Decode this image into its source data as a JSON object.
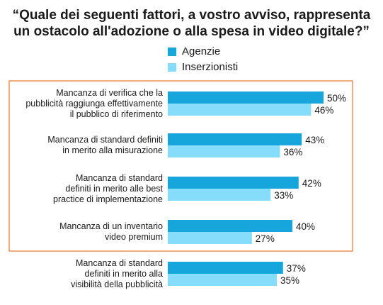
{
  "chart_data": {
    "type": "bar",
    "orientation": "horizontal",
    "title": "“Quale dei seguenti fattori, a vostro avviso, rappresenta\nun ostacolo all'adozione o alla spesa in video digitale?”",
    "categories": [
      "Mancanza di verifica che la\npubblicità raggiunga effettivamente\nil pubblico di riferimento",
      "Mancanza di standard definiti\nin merito alla misurazione",
      "Mancanza di standard\ndefiniti in merito alle best\npractice di implementazione",
      "Mancanza di un inventario\nvideo premium",
      "Mancanza di standard\ndefiniti in merito alla\nvisibilità della pubblicità"
    ],
    "series": [
      {
        "name": "Agenzie",
        "values": [
          50,
          43,
          42,
          40,
          37
        ],
        "labels": [
          "50%",
          "43%",
          "42%",
          "40%",
          "37%"
        ],
        "color": "#16a6dc"
      },
      {
        "name": "Inserzionisti",
        "values": [
          46,
          36,
          33,
          27,
          35
        ],
        "labels": [
          "46%",
          "36%",
          "33%",
          "27%",
          "35%"
        ],
        "color": "#86dcfb"
      }
    ],
    "unit": "%",
    "xlim": [
      0,
      100
    ],
    "grid": false,
    "legend_position": "top",
    "highlight_box": {
      "first_category": 0,
      "last_category": 3,
      "color": "#f07d3c"
    }
  }
}
